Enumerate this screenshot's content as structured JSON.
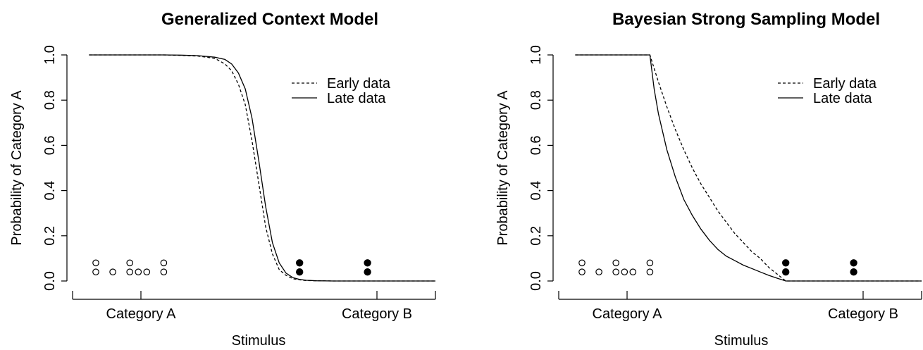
{
  "chart_data": [
    {
      "type": "line",
      "title": "Generalized Context Model",
      "xlabel": "Stimulus",
      "ylabel": "Probability of Category A",
      "xlim": [
        0,
        10
      ],
      "ylim": [
        0,
        1
      ],
      "yticks": [
        "0.0",
        "0.2",
        "0.4",
        "0.6",
        "0.8",
        "1.0"
      ],
      "x_categories": [
        {
          "label": "Category A",
          "x": 1.5
        },
        {
          "label": "Category B",
          "x": 8.5
        }
      ],
      "legend": {
        "position": "top-right",
        "entries": [
          "Early data",
          "Late data"
        ]
      },
      "series": [
        {
          "name": "Early data",
          "style": "dashed",
          "x": [
            -0.2,
            0.5,
            1.0,
            1.5,
            2.0,
            2.5,
            3.0,
            3.5,
            3.8,
            4.0,
            4.2,
            4.4,
            4.6,
            4.8,
            5.0,
            5.2,
            5.4,
            5.6,
            5.8,
            6.0,
            6.2,
            6.5,
            7.0,
            7.5,
            8.0,
            8.5,
            9.0,
            9.5,
            10.0
          ],
          "y": [
            1.0,
            1.0,
            1.0,
            1.0,
            1.0,
            0.998,
            0.995,
            0.985,
            0.96,
            0.93,
            0.87,
            0.78,
            0.62,
            0.43,
            0.24,
            0.12,
            0.05,
            0.025,
            0.01,
            0.005,
            0.002,
            0.001,
            0.0,
            0.0,
            0.0,
            0.0,
            0.0,
            0.0,
            0.0
          ]
        },
        {
          "name": "Late data",
          "style": "solid",
          "x": [
            -0.2,
            0.5,
            1.0,
            1.5,
            2.0,
            2.5,
            3.0,
            3.5,
            3.8,
            4.0,
            4.2,
            4.4,
            4.6,
            4.8,
            5.0,
            5.2,
            5.4,
            5.6,
            5.8,
            6.0,
            6.2,
            6.5,
            7.0,
            7.5,
            8.0,
            8.5,
            9.0,
            9.5,
            10.0
          ],
          "y": [
            1.0,
            1.0,
            1.0,
            1.0,
            1.0,
            0.999,
            0.997,
            0.99,
            0.98,
            0.96,
            0.92,
            0.85,
            0.72,
            0.53,
            0.33,
            0.17,
            0.08,
            0.035,
            0.015,
            0.007,
            0.003,
            0.001,
            0.0,
            0.0,
            0.0,
            0.0,
            0.0,
            0.0,
            0.0
          ]
        }
      ],
      "observations": [
        {
          "category": "A",
          "x": 0.0,
          "y": 0.08
        },
        {
          "category": "A",
          "x": 0.0,
          "y": 0.04
        },
        {
          "category": "A",
          "x": 0.5,
          "y": 0.04
        },
        {
          "category": "A",
          "x": 1.0,
          "y": 0.08
        },
        {
          "category": "A",
          "x": 1.0,
          "y": 0.04
        },
        {
          "category": "A",
          "x": 1.25,
          "y": 0.04
        },
        {
          "category": "A",
          "x": 1.5,
          "y": 0.04
        },
        {
          "category": "A",
          "x": 2.0,
          "y": 0.08
        },
        {
          "category": "A",
          "x": 2.0,
          "y": 0.04
        },
        {
          "category": "B",
          "x": 6.0,
          "y": 0.08
        },
        {
          "category": "B",
          "x": 6.0,
          "y": 0.04
        },
        {
          "category": "B",
          "x": 8.0,
          "y": 0.08
        },
        {
          "category": "B",
          "x": 8.0,
          "y": 0.04
        }
      ]
    },
    {
      "type": "line",
      "title": "Bayesian Strong Sampling Model",
      "xlabel": "Stimulus",
      "ylabel": "Probability of Category A",
      "xlim": [
        0,
        10
      ],
      "ylim": [
        0,
        1
      ],
      "yticks": [
        "0.0",
        "0.2",
        "0.4",
        "0.6",
        "0.8",
        "1.0"
      ],
      "x_categories": [
        {
          "label": "Category A",
          "x": 1.5
        },
        {
          "label": "Category B",
          "x": 8.5
        }
      ],
      "legend": {
        "position": "top-right",
        "entries": [
          "Early data",
          "Late data"
        ]
      },
      "series": [
        {
          "name": "Early data",
          "style": "dashed",
          "x": [
            -0.2,
            2.0,
            2.25,
            2.5,
            2.75,
            3.0,
            3.25,
            3.5,
            3.75,
            4.0,
            4.25,
            4.5,
            4.75,
            5.0,
            5.25,
            5.5,
            5.75,
            6.0,
            10.0
          ],
          "y": [
            1.0,
            1.0,
            0.88,
            0.77,
            0.67,
            0.58,
            0.5,
            0.43,
            0.37,
            0.31,
            0.26,
            0.21,
            0.17,
            0.13,
            0.1,
            0.06,
            0.03,
            0.0,
            0.0
          ]
        },
        {
          "name": "Late data",
          "style": "solid",
          "x": [
            -0.2,
            2.0,
            2.125,
            2.25,
            2.5,
            2.75,
            3.0,
            3.25,
            3.5,
            3.75,
            4.0,
            4.25,
            4.5,
            4.75,
            5.0,
            5.25,
            5.5,
            5.75,
            6.0,
            10.0
          ],
          "y": [
            1.0,
            1.0,
            0.85,
            0.74,
            0.58,
            0.46,
            0.36,
            0.29,
            0.23,
            0.18,
            0.14,
            0.11,
            0.09,
            0.07,
            0.055,
            0.04,
            0.025,
            0.012,
            0.0,
            0.0
          ]
        }
      ],
      "observations": [
        {
          "category": "A",
          "x": 0.0,
          "y": 0.08
        },
        {
          "category": "A",
          "x": 0.0,
          "y": 0.04
        },
        {
          "category": "A",
          "x": 0.5,
          "y": 0.04
        },
        {
          "category": "A",
          "x": 1.0,
          "y": 0.08
        },
        {
          "category": "A",
          "x": 1.0,
          "y": 0.04
        },
        {
          "category": "A",
          "x": 1.25,
          "y": 0.04
        },
        {
          "category": "A",
          "x": 1.5,
          "y": 0.04
        },
        {
          "category": "A",
          "x": 2.0,
          "y": 0.08
        },
        {
          "category": "A",
          "x": 2.0,
          "y": 0.04
        },
        {
          "category": "B",
          "x": 6.0,
          "y": 0.08
        },
        {
          "category": "B",
          "x": 6.0,
          "y": 0.04
        },
        {
          "category": "B",
          "x": 8.0,
          "y": 0.08
        },
        {
          "category": "B",
          "x": 8.0,
          "y": 0.04
        }
      ]
    }
  ]
}
